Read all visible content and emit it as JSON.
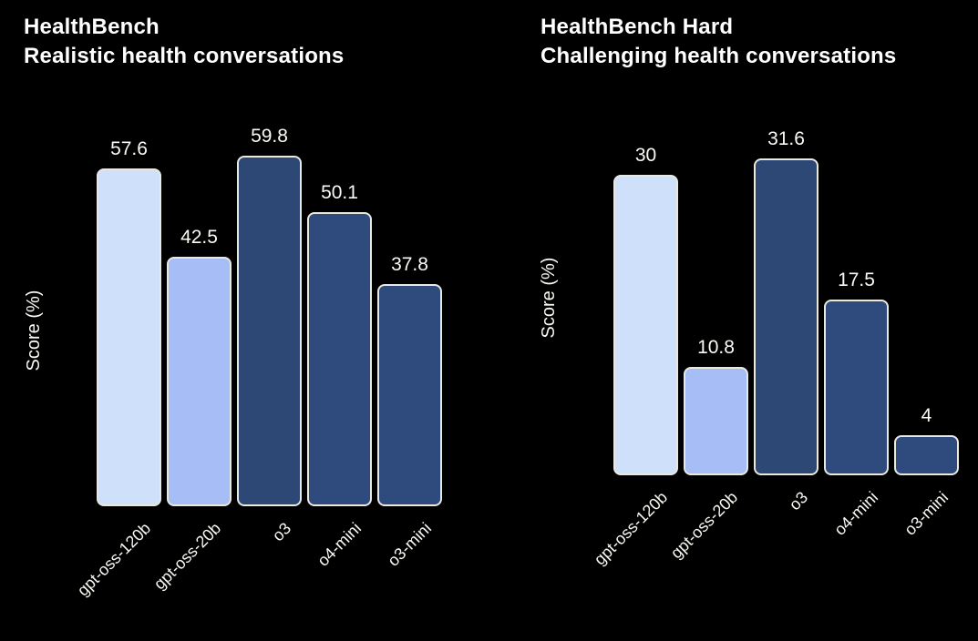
{
  "figure": {
    "background": "#000000",
    "text_color": "#faf8f2",
    "bar_border_color": "#e9e8e1"
  },
  "chart_data": [
    {
      "type": "bar",
      "title": "HealthBench",
      "subtitle": "Realistic health conversations",
      "ylabel": "Score (%)",
      "xlabel": "",
      "categories": [
        "gpt-oss-120b",
        "gpt-oss-20b",
        "o3",
        "o4-mini",
        "o3-mini"
      ],
      "values": [
        57.6,
        42.5,
        59.8,
        50.1,
        37.8
      ],
      "value_labels": [
        "57.6",
        "42.5",
        "59.8",
        "50.1",
        "37.8"
      ],
      "bar_colors": [
        "#cfe0fb",
        "#a6bef5",
        "#2d4875",
        "#2f4b7e",
        "#2f4b7e"
      ],
      "ylim": [
        0,
        63
      ],
      "grid": false,
      "legend": false,
      "tick_rotation": 45
    },
    {
      "type": "bar",
      "title": "HealthBench Hard",
      "subtitle": "Challenging health conversations",
      "ylabel": "Score (%)",
      "xlabel": "",
      "categories": [
        "gpt-oss-120b",
        "gpt-oss-20b",
        "o3",
        "o4-mini",
        "o3-mini"
      ],
      "values": [
        30,
        10.8,
        31.6,
        17.5,
        4
      ],
      "value_labels": [
        "30",
        "10.8",
        "31.6",
        "17.5",
        "4"
      ],
      "bar_colors": [
        "#cfe0fb",
        "#a6bef5",
        "#2d4875",
        "#2f4b7e",
        "#2f4b7e"
      ],
      "ylim": [
        0,
        33
      ],
      "grid": false,
      "legend": false,
      "tick_rotation": 45
    }
  ]
}
